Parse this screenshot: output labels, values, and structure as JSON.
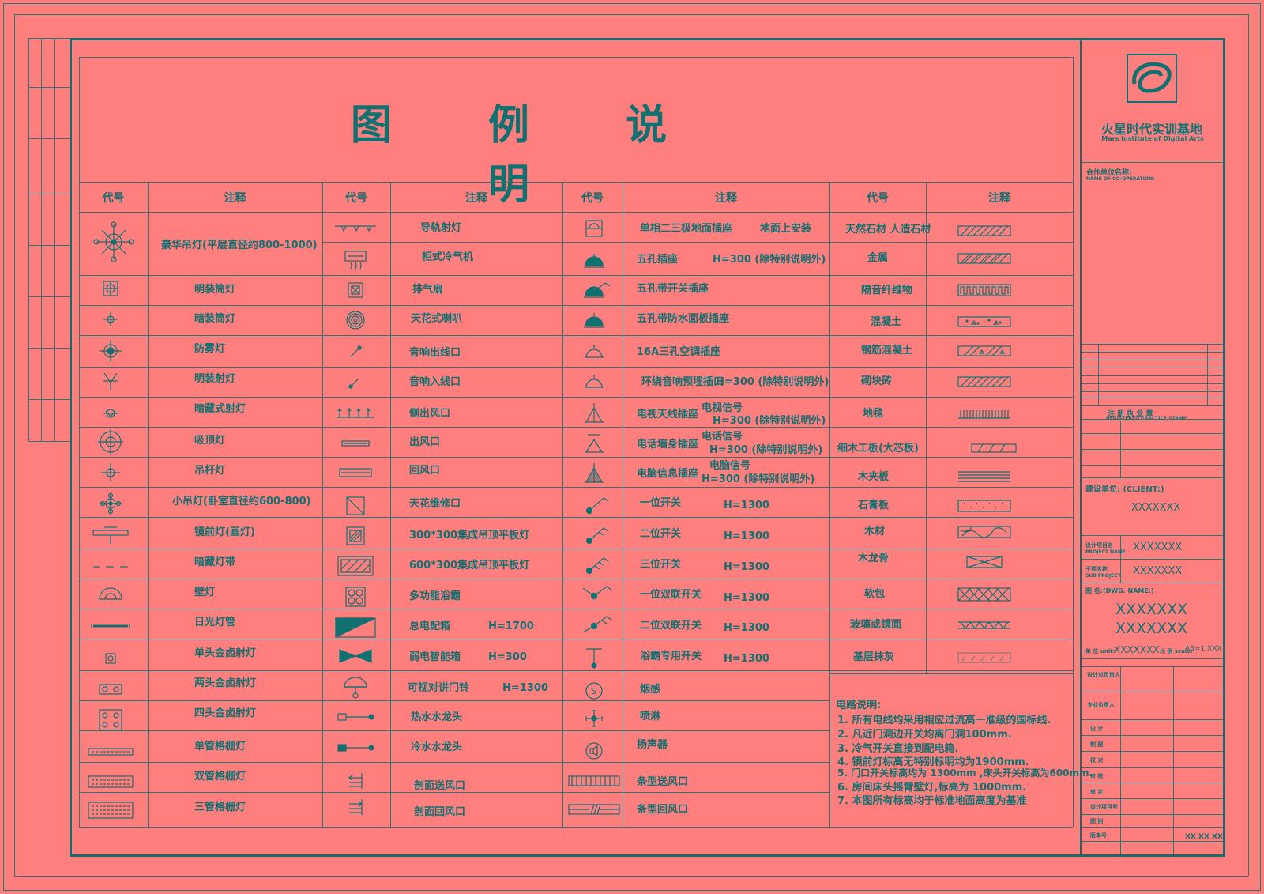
{
  "title": "图 例 说 明",
  "headers": [
    "代号",
    "注释",
    "代号",
    "注释",
    "代号",
    "注释",
    "代号",
    "注释"
  ],
  "col1": [
    "豪华吊灯(平层直径约800-1000)",
    "明装筒灯",
    "暗装筒灯",
    "防雾灯",
    "明装射灯",
    "暗藏式射灯",
    "吸顶灯",
    "吊杆灯",
    "小吊灯(卧室直径约600-800)",
    "镜前灯(画灯)",
    "暗藏灯带",
    "壁灯",
    "日光灯管",
    "单头金卤射灯",
    "两头金卤射灯",
    "四头金卤射灯",
    "单管格栅灯",
    "双管格栅灯",
    "三管格栅灯"
  ],
  "col2": [
    "导轨射灯",
    "柜式冷气机",
    "排气扇",
    "天花式喇叭",
    "音响出线口",
    "音响入线口",
    "侧出风口",
    "出风口",
    "回风口",
    "天花维修口",
    "300*300集成吊顶平板灯",
    "600*300集成吊顶平板灯",
    "多功能浴霸",
    "总电配箱",
    "弱电智能箱",
    "可视对讲门铃",
    "热水水龙头",
    "冷水水龙头",
    "剖面送风口",
    "剖面回风口"
  ],
  "col2_extra": {
    "dist": "H=1700",
    "weak": "H=300",
    "door": "H=1300"
  },
  "col3": [
    {
      "label": "单相二三极地面插座",
      "extra": "地面上安装"
    },
    {
      "label": "五孔插座",
      "extra": "H=300 (除特别说明外)"
    },
    {
      "label": "五孔带开关插座",
      "extra": ""
    },
    {
      "label": "五孔带防水面板插座",
      "extra": ""
    },
    {
      "label": "16A三孔空调插座",
      "extra": ""
    },
    {
      "label": "环绕音响预埋插口",
      "extra": "H=300 (除特别说明外)"
    },
    {
      "label": "电视天线插座",
      "extra": "电视信号",
      "extra2": "H=300 (除特别说明外)"
    },
    {
      "label": "电话墙身插座",
      "extra": "电话信号",
      "extra2": "H=300 (除特别说明外)"
    },
    {
      "label": "电脑信息插座",
      "extra": "电脑信号",
      "extra2": "H=300 (除特别说明外)"
    },
    {
      "label": "一位开关",
      "extra": "H=1300"
    },
    {
      "label": "二位开关",
      "extra": "H=1300"
    },
    {
      "label": "三位开关",
      "extra": "H=1300"
    },
    {
      "label": "一位双联开关",
      "extra": "H=1300"
    },
    {
      "label": "二位双联开关",
      "extra": "H=1300"
    },
    {
      "label": "浴霸专用开关",
      "extra": "H=1300"
    },
    {
      "label": "烟感",
      "extra": ""
    },
    {
      "label": "喷淋",
      "extra": ""
    },
    {
      "label": "扬声器",
      "extra": ""
    },
    {
      "label": "条型送风口",
      "extra": ""
    },
    {
      "label": "条型回风口",
      "extra": ""
    }
  ],
  "col4": [
    "天然石材 人造石材",
    "金属",
    "隔音纤维物",
    "混凝土",
    "钢筋混凝土",
    "砌块砖",
    "地毯",
    "细木工板(大芯板)",
    "木夹板",
    "石膏板",
    "木材",
    "木龙骨",
    "软包",
    "玻璃或镜面",
    "基层抹灰"
  ],
  "notes": {
    "title": "电路说明:",
    "items": [
      "1. 所有电线均采用相应过流高一准级的国标线.",
      "2. 凡近门洞边开关均离门洞100mm.",
      "3. 冷气开关直接到配电箱.",
      "4. 镜前灯标高无特别标明均为1900mm.",
      "5. 门口开关标高均为 1300mm ,床头开关标高为600mm.",
      "6. 房间床头摇臂壁灯,标高为 1000mm.",
      "7. 本图所有标高均于标准地面高度为基准"
    ]
  },
  "titleblock": {
    "org": "火星时代实训基地",
    "org_en": "Mars Institute of Digital Arts",
    "coop_label": "合作单位名称:",
    "coop_en": "NAME OF CO-OPERATION:",
    "cert_title": "注 册 执 业 章",
    "cert_en": "REGISTERED PRACTICE STAMP",
    "client_label": "建设单位: (CLIENT:)",
    "client": "XXXXXXX",
    "project_label": "设计项目名",
    "project_en": "PROJECT NAME",
    "project": "XXXXXXX",
    "sub_label": "子项名称",
    "sub_en": "SUB PROJECT",
    "sub": "XXXXXXX",
    "drawing_label": "图 名:(DWG. NAME:)",
    "drawing1": "XXXXXXX",
    "drawing2": "XXXXXXX",
    "unit_label": "单 位 unit:",
    "unit": "XXXXXXX",
    "scale_label": "比 例 scale:",
    "scale": "A3=1:XXX",
    "date_val": "XX XX XX",
    "rows": [
      "设计总负责人",
      "专业负责人",
      "设 计",
      "制 图",
      "校 对",
      "审 核",
      "审 定",
      "设计项目号",
      "图 别",
      "版本号"
    ]
  }
}
